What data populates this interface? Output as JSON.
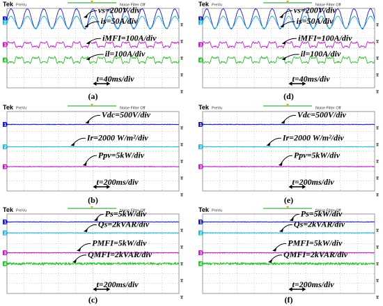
{
  "scope": {
    "brand": "Tek",
    "mode": "PreVu",
    "filter_status": "Noise Filter Off",
    "colors": {
      "screen": "#ffffff",
      "grid": "#9a9a9a",
      "frame": "#7f7f7f",
      "header_bar": "#1a1a1a",
      "brand": "#ffffff",
      "ch1": "#1f1fbf",
      "ch2": "#22b8d8",
      "ch3": "#c21fc2",
      "ch4": "#2cc02c",
      "label_text": "#000000"
    },
    "channel_markers": [
      "1",
      "2",
      "3",
      "4"
    ]
  },
  "chart_data": [
    {
      "panel": "a",
      "caption": "(a)",
      "type": "line",
      "series": [
        {
          "channel": 1,
          "waveform": "sine",
          "cycles": 10.5,
          "amplitude_div": 1.0,
          "level_div": 2.95
        },
        {
          "channel": 2,
          "waveform": "sine",
          "cycles": 10.5,
          "amplitude_div": 0.6,
          "level_div": 2.6
        },
        {
          "channel": 3,
          "waveform": "distorted",
          "cycles": 10.5,
          "amplitude_div": 0.35,
          "level_div": 0.35
        },
        {
          "channel": 4,
          "waveform": "distorted",
          "cycles": 10.5,
          "amplitude_div": 0.4,
          "level_div": -1.2
        }
      ],
      "annotations": [
        {
          "text": "vs=200V/div",
          "lx": 5.3,
          "ly": 3.55,
          "tx": 4.45,
          "ty": 3.1
        },
        {
          "text": "is=50A/div",
          "lx": 5.45,
          "ly": 2.45,
          "tx": 4.5,
          "ty": 2.15
        },
        {
          "text": "iMFI=100A/div",
          "lx": 5.55,
          "ly": 0.75,
          "tx": 4.6,
          "ty": 0.45
        },
        {
          "text": "il=100A/div",
          "lx": 5.7,
          "ly": -0.85,
          "tx": 4.6,
          "ty": -1.15
        }
      ],
      "time_scale": "t=40ms/div"
    },
    {
      "panel": "d",
      "caption": "(d)",
      "type": "line",
      "series": [
        {
          "channel": 1,
          "waveform": "sine",
          "cycles": 10.5,
          "amplitude_div": 1.0,
          "level_div": 2.95
        },
        {
          "channel": 2,
          "waveform": "sine",
          "cycles": 10.5,
          "amplitude_div": 0.6,
          "level_div": 2.6
        },
        {
          "channel": 3,
          "waveform": "distorted",
          "cycles": 10.5,
          "amplitude_div": 0.35,
          "level_div": 0.35
        },
        {
          "channel": 4,
          "waveform": "distorted",
          "cycles": 10.5,
          "amplitude_div": 0.4,
          "level_div": -1.2
        }
      ],
      "annotations": [
        {
          "text": "vs=200V/div",
          "lx": 5.3,
          "ly": 3.55,
          "tx": 4.45,
          "ty": 3.1
        },
        {
          "text": "is=50A/div",
          "lx": 5.45,
          "ly": 2.45,
          "tx": 4.5,
          "ty": 2.15
        },
        {
          "text": "iMFI=100A/div",
          "lx": 5.55,
          "ly": 0.75,
          "tx": 4.6,
          "ty": 0.45
        },
        {
          "text": "il=100A/div",
          "lx": 5.7,
          "ly": -0.85,
          "tx": 4.6,
          "ty": -1.15
        }
      ],
      "time_scale": "t=40ms/div"
    },
    {
      "panel": "b",
      "caption": "(b)",
      "type": "line",
      "series": [
        {
          "channel": 1,
          "waveform": "dc",
          "level_div": 2.7
        },
        {
          "channel": 2,
          "waveform": "dc",
          "level_div": 0.45
        },
        {
          "channel": 3,
          "waveform": "dc",
          "level_div": -1.55
        }
      ],
      "annotations": [
        {
          "text": "Vdc=500V/div",
          "lx": 5.5,
          "ly": 3.4,
          "tx": 4.55,
          "ty": 2.85
        },
        {
          "text": "Ir=2000 W/m²/div",
          "lx": 4.65,
          "ly": 1.1,
          "tx": 3.7,
          "ty": 0.6
        },
        {
          "text": "Ppv=5kW/div",
          "lx": 5.3,
          "ly": -0.65,
          "tx": 4.4,
          "ty": -1.4
        }
      ],
      "time_scale": "t=200ms/div"
    },
    {
      "panel": "e",
      "caption": "(e)",
      "type": "line",
      "series": [
        {
          "channel": 1,
          "waveform": "dc",
          "level_div": 2.7
        },
        {
          "channel": 2,
          "waveform": "dc",
          "level_div": 0.45
        },
        {
          "channel": 3,
          "waveform": "dc",
          "level_div": -1.55
        }
      ],
      "annotations": [
        {
          "text": "Vdc=500V/div",
          "lx": 5.5,
          "ly": 3.4,
          "tx": 4.55,
          "ty": 2.85
        },
        {
          "text": "Ir=2000 W/m²/div",
          "lx": 4.65,
          "ly": 1.1,
          "tx": 3.7,
          "ty": 0.6
        },
        {
          "text": "Ppv=5kW/div",
          "lx": 5.3,
          "ly": -0.65,
          "tx": 4.4,
          "ty": -1.4
        }
      ],
      "time_scale": "t=200ms/div"
    },
    {
      "panel": "c",
      "caption": "(c)",
      "type": "line",
      "series": [
        {
          "channel": 1,
          "waveform": "dc",
          "level_div": 3.2
        },
        {
          "channel": 2,
          "waveform": "dc",
          "level_div": 2.1
        },
        {
          "channel": 3,
          "waveform": "dc",
          "level_div": 0.1
        },
        {
          "channel": 4,
          "waveform": "dc_noisy",
          "level_div": -1.0
        }
      ],
      "annotations": [
        {
          "text": "Ps=5kW/div",
          "lx": 5.7,
          "ly": 3.75,
          "tx": 5.05,
          "ty": 3.35
        },
        {
          "text": "Qs=2kVAR/div",
          "lx": 5.3,
          "ly": 2.7,
          "tx": 4.45,
          "ty": 2.25
        },
        {
          "text": "PMFI=5kW/div",
          "lx": 4.95,
          "ly": 0.8,
          "tx": 4.05,
          "ty": 0.3
        },
        {
          "text": "QMFI=2kVAR/div",
          "lx": 4.7,
          "ly": -0.35,
          "tx": 3.8,
          "ty": -0.85
        }
      ],
      "time_scale": "t=200ms/div"
    },
    {
      "panel": "f",
      "caption": "(f)",
      "type": "line",
      "series": [
        {
          "channel": 1,
          "waveform": "dc",
          "level_div": 3.2
        },
        {
          "channel": 2,
          "waveform": "dc",
          "level_div": 2.1
        },
        {
          "channel": 3,
          "waveform": "dc",
          "level_div": 0.1
        },
        {
          "channel": 4,
          "waveform": "dc_noisy",
          "level_div": -1.0
        }
      ],
      "annotations": [
        {
          "text": "Ps=5kW/div",
          "lx": 5.7,
          "ly": 3.75,
          "tx": 5.05,
          "ty": 3.35
        },
        {
          "text": "Qs=2kVAR/div",
          "lx": 5.3,
          "ly": 2.7,
          "tx": 4.45,
          "ty": 2.25
        },
        {
          "text": "PMFI=5kW/div",
          "lx": 4.95,
          "ly": 0.8,
          "tx": 4.05,
          "ty": 0.3
        },
        {
          "text": "QMFI=2kVAR/div",
          "lx": 4.7,
          "ly": -0.35,
          "tx": 3.8,
          "ty": -0.85
        }
      ],
      "time_scale": "t=200ms/div"
    }
  ]
}
